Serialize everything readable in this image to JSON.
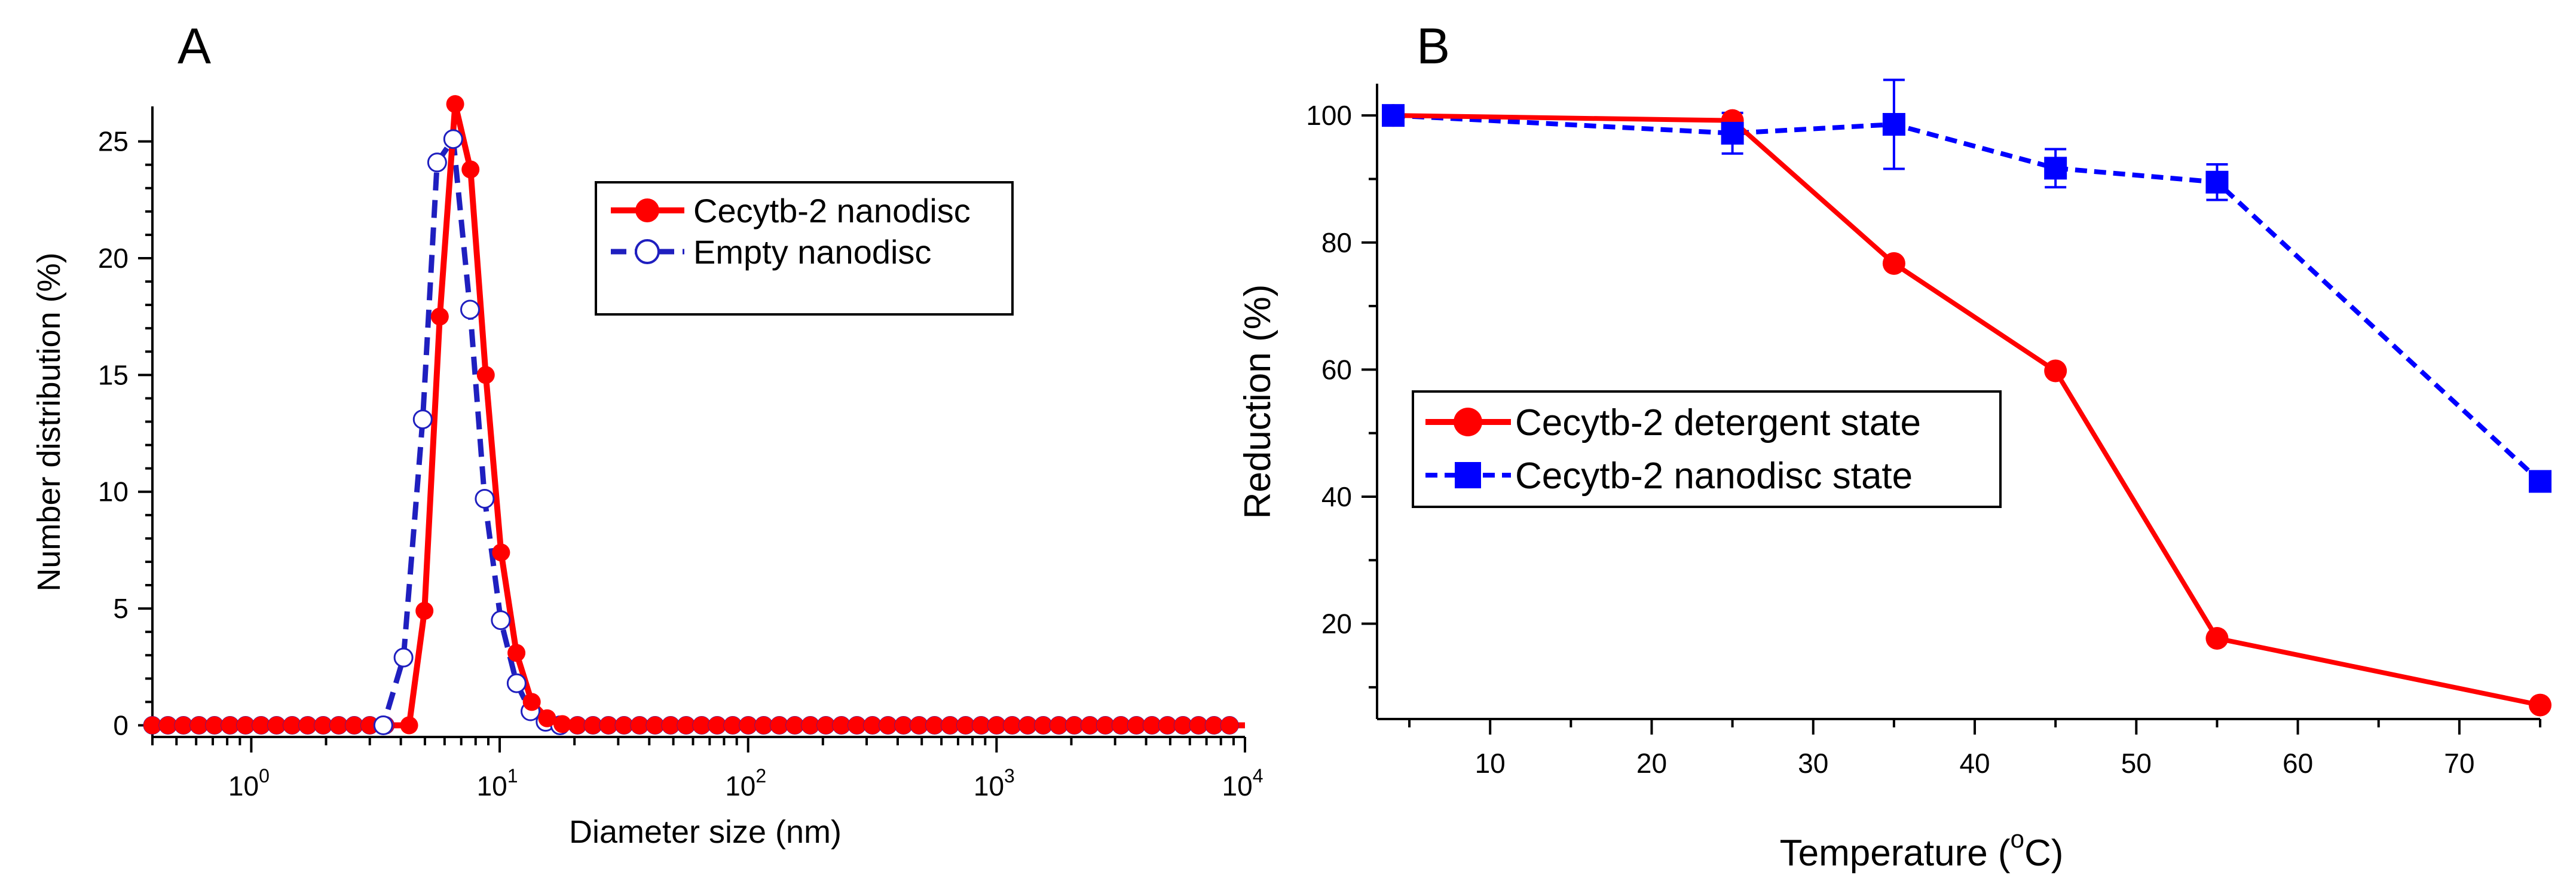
{
  "chart_data": [
    {
      "panel": "A",
      "type": "line",
      "title": "",
      "xlabel": "Diameter size (nm)",
      "ylabel": "Number distribution (%)",
      "xscale": "log",
      "xlim": [
        0.4,
        10000
      ],
      "ylim": [
        -0.5,
        26.5
      ],
      "xticks": [
        {
          "value": 1,
          "base": "10",
          "exp": "0"
        },
        {
          "value": 10,
          "base": "10",
          "exp": "1"
        },
        {
          "value": 100,
          "base": "10",
          "exp": "2"
        },
        {
          "value": 1000,
          "base": "10",
          "exp": "3"
        },
        {
          "value": 10000,
          "base": "10",
          "exp": "4"
        }
      ],
      "yticks": [
        0,
        5,
        10,
        15,
        20,
        25
      ],
      "legend": "top-right",
      "series": [
        {
          "name": "Cecytb-2 nanodisc",
          "color": "#ff0000",
          "style": "solid",
          "marker": "filled-circle",
          "x": [
            4.32,
            4.98,
            5.74,
            6.62,
            7.63,
            8.79,
            10.13,
            11.68,
            13.46,
            15.52,
            17.88
          ],
          "y": [
            0,
            4.9,
            17.5,
            26.6,
            23.8,
            15.0,
            7.4,
            3.1,
            1.0,
            0.3,
            0.05
          ]
        },
        {
          "name": "Empty nanodisc",
          "color": "#1f1fbf",
          "style": "dashed",
          "marker": "open-circle",
          "x": [
            3.4,
            4.1,
            4.9,
            5.6,
            6.5,
            7.6,
            8.7,
            10.1,
            11.7,
            13.3,
            15.3,
            17.5
          ],
          "y": [
            0,
            2.9,
            13.1,
            24.1,
            25.1,
            17.8,
            9.7,
            4.5,
            1.8,
            0.6,
            0.15,
            0
          ]
        }
      ]
    },
    {
      "panel": "B",
      "type": "line",
      "title": "",
      "xlabel": "Temperature (°C)",
      "xlabel_prefix": "Temperature (",
      "xlabel_deg": "o",
      "xlabel_suffix": "C)",
      "ylabel": "Reduction (%)",
      "xlim": [
        3,
        75
      ],
      "ylim": [
        5,
        105
      ],
      "xticks": [
        10,
        20,
        30,
        40,
        50,
        60,
        70
      ],
      "yticks": [
        20,
        40,
        60,
        80,
        100
      ],
      "legend": "center-left",
      "series": [
        {
          "name": "Cecytb-2 detergent state",
          "color": "#ff0000",
          "style": "solid",
          "marker": "filled-circle",
          "x": [
            4,
            25,
            35,
            45,
            55,
            75
          ],
          "y": [
            100,
            99.2,
            76.7,
            59.8,
            17.7,
            7.2
          ]
        },
        {
          "name": "Cecytb-2 nanodisc state",
          "color": "#0000ff",
          "style": "dashed",
          "marker": "filled-square",
          "x": [
            4,
            25,
            35,
            45,
            55,
            75
          ],
          "y": [
            100,
            97.2,
            98.6,
            91.7,
            89.5,
            42.4
          ],
          "err": [
            0,
            3.2,
            7.0,
            3.0,
            2.8,
            0
          ]
        }
      ]
    }
  ]
}
